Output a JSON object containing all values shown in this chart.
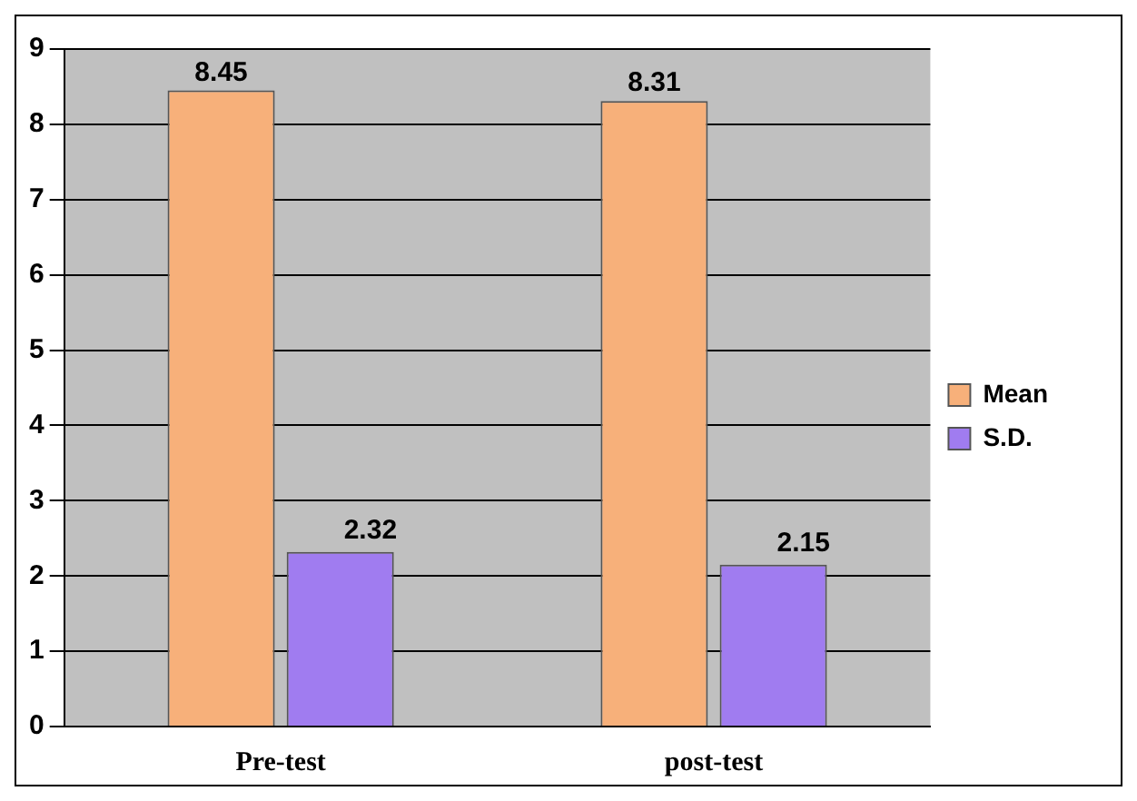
{
  "chart_data": {
    "type": "bar",
    "categories": [
      "Pre-test",
      "post-test"
    ],
    "series": [
      {
        "name": "Mean",
        "color": "#f7b07a",
        "values": [
          8.45,
          8.31
        ]
      },
      {
        "name": "S.D.",
        "color": "#a07cf0",
        "values": [
          2.32,
          2.15
        ]
      }
    ],
    "ylim": [
      0,
      9
    ],
    "yticks": [
      0,
      1,
      2,
      3,
      4,
      5,
      6,
      7,
      8,
      9
    ],
    "grid": "y",
    "legend": "right",
    "data_labels": true
  }
}
